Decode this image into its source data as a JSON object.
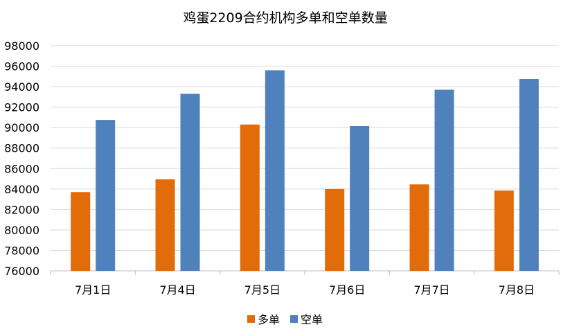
{
  "chart_data": {
    "type": "bar",
    "title": "鸡蛋2209合约机构多单和空单数量",
    "xlabel": "",
    "ylabel": "",
    "categories": [
      "7月1日",
      "7月4日",
      "7月5日",
      "7月6日",
      "7月7日",
      "7月8日"
    ],
    "series": [
      {
        "name": "多单",
        "color": "#E36C0A",
        "values": [
          83700,
          84950,
          90300,
          84000,
          84450,
          83850
        ]
      },
      {
        "name": "空单",
        "color": "#4F81BD",
        "values": [
          90750,
          93300,
          95600,
          90150,
          93700,
          94750
        ]
      }
    ],
    "ylim": [
      76000,
      98000
    ],
    "yticks": [
      76000,
      78000,
      80000,
      82000,
      84000,
      86000,
      88000,
      90000,
      92000,
      94000,
      96000,
      98000
    ],
    "grid": true,
    "legend_position": "bottom"
  }
}
